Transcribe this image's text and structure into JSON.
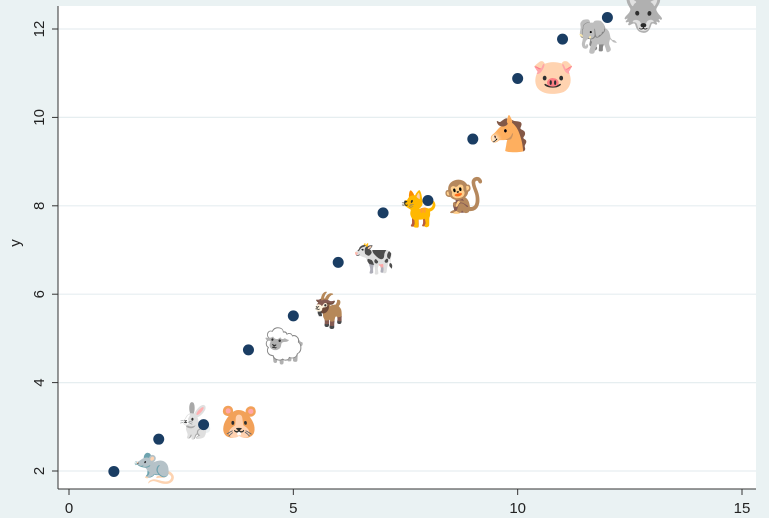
{
  "chart_data": {
    "type": "scatter",
    "title": "",
    "xlabel": "",
    "ylabel": "y",
    "xlim": [
      0,
      15
    ],
    "ylim": [
      2,
      12
    ],
    "xticks": [
      0,
      5,
      10,
      15
    ],
    "yticks": [
      2,
      4,
      6,
      8,
      10,
      12
    ],
    "grid": true,
    "colors": {
      "marker": "#1a3d63",
      "plot_bg": "#ffffff",
      "page_bg": "#eaf2f3",
      "grid": "#e6eef0"
    },
    "series": [
      {
        "x": [
          1,
          2,
          3,
          4,
          5,
          6,
          7,
          8,
          9,
          10,
          11,
          12
        ],
        "y": [
          1.99,
          2.72,
          3.05,
          4.74,
          5.51,
          6.72,
          7.84,
          8.12,
          9.51,
          10.88,
          11.77,
          12.26
        ]
      }
    ],
    "icons": [
      {
        "name": "mouse-icon",
        "glyph": "🐀",
        "x": 1.9,
        "y": 2.05
      },
      {
        "name": "rabbit-icon",
        "glyph": "🐇",
        "x": 2.8,
        "y": 3.05
      },
      {
        "name": "hamster-icon",
        "glyph": "🐹",
        "x": 3.8,
        "y": 3.05
      },
      {
        "name": "sheep-icon",
        "glyph": "🐑",
        "x": 4.8,
        "y": 4.75
      },
      {
        "name": "goat-icon",
        "glyph": "🐐",
        "x": 5.8,
        "y": 5.55
      },
      {
        "name": "cow-icon",
        "glyph": "🐄",
        "x": 6.8,
        "y": 6.75
      },
      {
        "name": "cat-icon",
        "glyph": "🐈",
        "x": 7.8,
        "y": 7.85
      },
      {
        "name": "monkey-icon",
        "glyph": "🐒",
        "x": 8.8,
        "y": 8.15
      },
      {
        "name": "horse-icon",
        "glyph": "🐴",
        "x": 9.8,
        "y": 9.55
      },
      {
        "name": "pig-icon",
        "glyph": "🐷",
        "x": 10.8,
        "y": 10.85
      },
      {
        "name": "elephant-icon",
        "glyph": "🐘",
        "x": 11.8,
        "y": 11.75
      },
      {
        "name": "wolf-icon",
        "glyph": "🐺",
        "x": 12.8,
        "y": 12.25
      }
    ]
  }
}
